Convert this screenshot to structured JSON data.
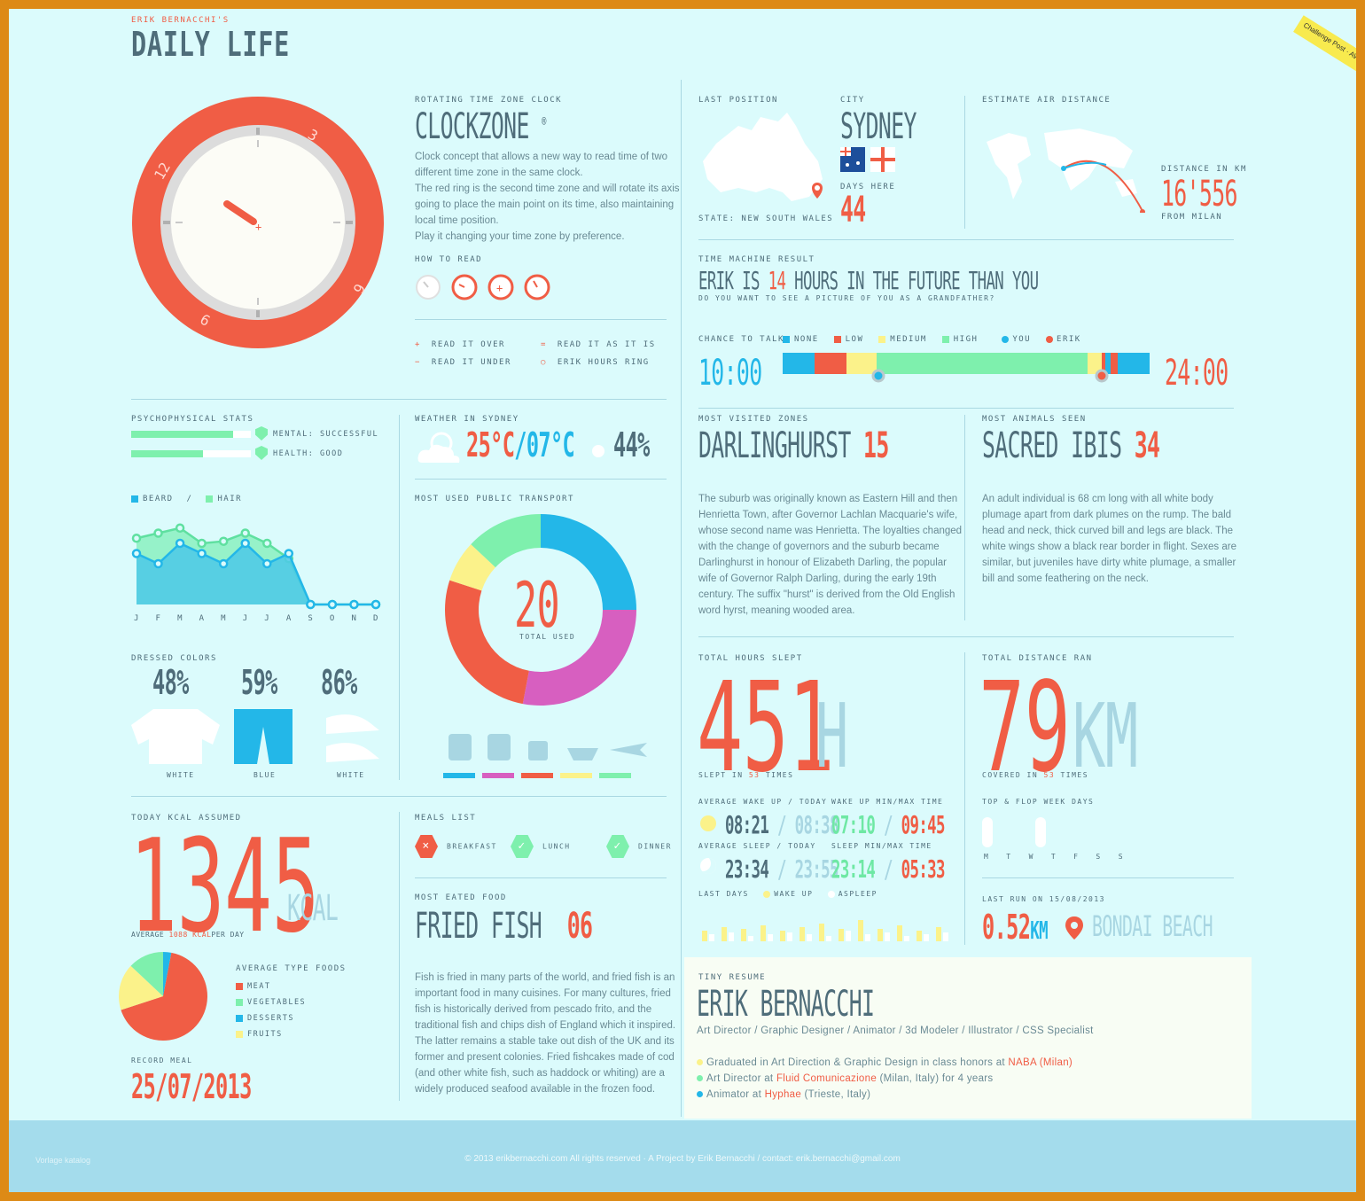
{
  "header": {
    "subtitle": "ERIK BERNACCHI'S",
    "title": "DAILY LIFE",
    "badge": "Challenge Post · AWARD WINNER"
  },
  "clockzone": {
    "label": "ROTATING TIME ZONE CLOCK",
    "title": "CLOCKZONE",
    "mark": "®",
    "desc": [
      "Clock concept that allows a new way to read time of two",
      "different time zone in the same clock.",
      "The red ring is the second time zone and will rotate its axis",
      "going to place the main point on its time, also maintaining",
      "local time position.",
      "Play it changing your time zone by preference."
    ],
    "how_label": "HOW TO READ",
    "ring_numbers": [
      "12",
      "3",
      "6",
      "9"
    ],
    "legend": [
      {
        "sym": "+",
        "text": "READ IT OVER"
      },
      {
        "sym": "=",
        "text": "READ IT AS IT IS"
      },
      {
        "sym": "−",
        "text": "READ IT UNDER"
      },
      {
        "sym": "○",
        "text": "ERIK HOURS RING"
      }
    ]
  },
  "position": {
    "label": "LAST POSITION",
    "state": "STATE: NEW SOUTH WALES",
    "city_label": "CITY",
    "city": "SYDNEY",
    "days_label": "DAYS HERE",
    "days": "44"
  },
  "air": {
    "label": "ESTIMATE AIR DISTANCE",
    "dist_label": "DISTANCE IN KM",
    "dist": "16'556",
    "from": "FROM MILAN"
  },
  "timemachine": {
    "label": "TIME MACHINE RESULT",
    "pre": "ERIK IS",
    "hours": "14",
    "post": "HOURS IN THE FUTURE THAN YOU",
    "question": "DO YOU WANT TO SEE A PICTURE OF YOU AS A GRANDFATHER?"
  },
  "chance": {
    "label": "CHANCE TO TALK",
    "legend": [
      "NONE",
      "LOW",
      "MEDIUM",
      "HIGH"
    ],
    "you": "YOU",
    "erik": "ERIK",
    "start": "10:00",
    "end": "24:00",
    "colors": {
      "none": "#23b7e8",
      "low": "#f05d45",
      "medium": "#fbf28a",
      "high": "#7ef0ad"
    }
  },
  "psycho": {
    "label": "PSYCHOPHYSICAL STATS",
    "bars": [
      {
        "text": "MENTAL: SUCCESSFUL",
        "fill": 0.85
      },
      {
        "text": "HEALTH: GOOD",
        "fill": 0.6
      }
    ]
  },
  "weather": {
    "label": "WEATHER IN SYDNEY",
    "max": "25°C",
    "sep": "/",
    "min": "07°C",
    "humidity": "44%"
  },
  "beard": {
    "legend_a": "BEARD",
    "sep": "/",
    "legend_b": "HAIR",
    "months": [
      "J",
      "F",
      "M",
      "A",
      "M",
      "J",
      "J",
      "A",
      "S",
      "O",
      "N",
      "D"
    ],
    "beard": [
      5,
      4,
      6,
      5,
      4,
      6,
      4,
      5,
      0,
      0,
      0,
      0
    ],
    "hair": [
      6.5,
      7,
      7.5,
      6,
      6.2,
      7,
      6,
      4.5,
      0,
      0,
      0,
      0
    ]
  },
  "dressed": {
    "label": "DRESSED COLORS",
    "items": [
      {
        "pct": "48%",
        "name": "WHITE"
      },
      {
        "pct": "59%",
        "name": "BLUE"
      },
      {
        "pct": "86%",
        "name": "WHITE"
      }
    ]
  },
  "transport": {
    "label": "MOST USED PUBLIC TRANSPORT",
    "total": "20",
    "total_label": "TOTAL USED",
    "segments": [
      {
        "value": 25,
        "color": "#23b7e8"
      },
      {
        "value": 28,
        "color": "#d75fc0"
      },
      {
        "value": 27,
        "color": "#f05d45"
      },
      {
        "value": 7,
        "color": "#fbf28a"
      },
      {
        "value": 13,
        "color": "#7ef0ad"
      }
    ]
  },
  "visited": {
    "label": "MOST VISITED ZONES",
    "name": "DARLINGHURST",
    "count": "15",
    "desc": [
      "The suburb was originally known as Eastern Hill and then",
      "Henrietta Town, after Governor Lachlan Macquarie's wife,",
      "whose second name was Henrietta. The loyalties changed",
      "with the change of governors and the suburb became",
      "Darlinghurst in honour of Elizabeth Darling, the popular",
      "wife of Governor Ralph Darling, during the early 19th",
      "century. The suffix \"hurst\" is derived from the Old English",
      "word hyrst, meaning wooded area."
    ]
  },
  "animals": {
    "label": "MOST ANIMALS SEEN",
    "name": "SACRED IBIS",
    "count": "34",
    "desc": [
      "An adult individual is 68 cm long with all white body",
      "plumage apart from dark plumes on the rump. The bald",
      "head and neck, thick curved bill and legs are black. The",
      "white wings show a black rear border in flight. Sexes are",
      "similar, but juveniles have dirty white plumage, a smaller",
      "bill and some feathering on the neck."
    ]
  },
  "sleep": {
    "label": "TOTAL HOURS SLEPT",
    "value": "451",
    "unit": "H",
    "slept_pre": "SLEPT IN",
    "slept_n": "53",
    "slept_post": "TIMES",
    "wake_label": "AVERAGE WAKE UP / TODAY",
    "wake_avg": "08:21",
    "wake_today": "08:38",
    "wake_mm_label": "WAKE UP MIN/MAX TIME",
    "wake_min": "07:10",
    "wake_max": "09:45",
    "sleep_label": "AVERAGE SLEEP / TODAY",
    "sleep_avg": "23:34",
    "sleep_today": "23:55",
    "sleep_mm_label": "SLEEP MIN/MAX TIME",
    "sleep_min": "23:14",
    "sleep_max": "05:33",
    "last_label": "LAST DAYS",
    "wake_legend": "WAKE UP",
    "sleep_legend": "ASPLEEP"
  },
  "run": {
    "label": "TOTAL DISTANCE RAN",
    "value": "79",
    "unit": "KM",
    "covered_pre": "COVERED IN",
    "covered_n": "53",
    "covered_post": "TIMES",
    "week_label": "TOP & FLOP WEEK DAYS",
    "week_days": [
      "M",
      "T",
      "W",
      "T",
      "F",
      "S",
      "S"
    ],
    "last_label": "LAST RUN ON 15/08/2013",
    "last_km": "0.52",
    "last_unit": "KM",
    "place": "BONDAI BEACH"
  },
  "kcal": {
    "label": "TODAY KCAL ASSUMED",
    "value": "1345",
    "unit": "KCAL",
    "avg_pre": "AVERAGE",
    "avg_val": "1088 KCAL",
    "avg_post": "PER DAY",
    "types_label": "AVERAGE TYPE FOODS",
    "types": [
      {
        "name": "MEAT",
        "color": "#f05d45",
        "value": 67
      },
      {
        "name": "VEGETABLES",
        "color": "#7ef0ad",
        "value": 13
      },
      {
        "name": "DESSERTS",
        "color": "#23b7e8",
        "value": 3
      },
      {
        "name": "FRUITS",
        "color": "#fbf28a",
        "value": 17
      }
    ],
    "record_label": "RECORD MEAL",
    "record": "25/07/2013"
  },
  "meals": {
    "label": "MEALS LIST",
    "items": [
      {
        "name": "BREAKFAST",
        "ok": false
      },
      {
        "name": "LUNCH",
        "ok": true
      },
      {
        "name": "DINNER",
        "ok": true
      }
    ]
  },
  "food": {
    "label": "MOST EATED FOOD",
    "name": "FRIED FISH",
    "count": "06",
    "desc": [
      "Fish is fried in many parts of the world, and fried fish is an",
      "important food in many cuisines. For many cultures, fried",
      "fish is historically derived from pescado frito, and the",
      "traditional fish and chips dish of England which it inspired.",
      "The latter remains a stable take out dish of the UK and its",
      "former and present colonies. Fried fishcakes made of cod",
      "(and other white fish, such as haddock or whiting) are a",
      "widely produced seafood available in the frozen food."
    ]
  },
  "resume": {
    "label": "TINY RESUME",
    "name": "ERIK BERNACCHI",
    "roles": "Art Director / Graphic Designer / Animator / 3d Modeler / Illustrator / CSS Specialist",
    "lines": [
      {
        "pre": "Graduated in Art Direction & Graphic Design in class honors at ",
        "hl": "NABA (Milan)",
        "post": ""
      },
      {
        "pre": "Art Director at ",
        "hl": "Fluid Comunicazione",
        "post": " (Milan, Italy) for 4 years"
      },
      {
        "pre": "Animator at ",
        "hl": "Hyphae",
        "post": " (Trieste, Italy)"
      }
    ]
  },
  "footer": {
    "left": "Vorlage katalog",
    "text": "© 2013 erikbernacchi.com All rights reserved · A Project by Erik Bernacchi / contact: erik.bernacchi@gmail.com"
  }
}
